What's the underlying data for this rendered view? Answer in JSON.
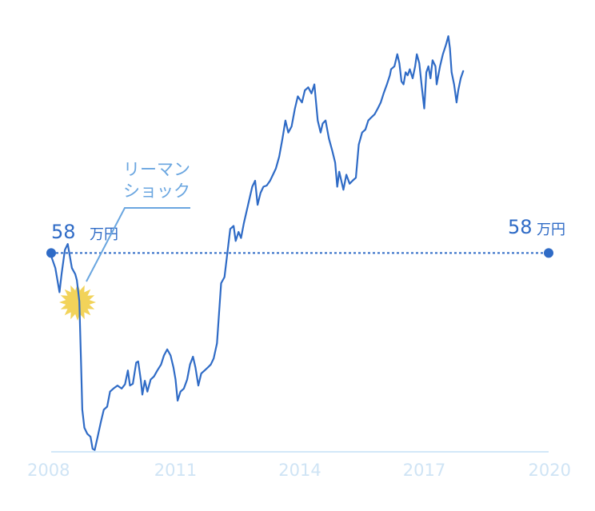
{
  "chart_data": {
    "type": "line",
    "series": [
      {
        "color": "#2f6bc6",
        "points": [
          [
            2008.0,
            57.5
          ],
          [
            2008.1,
            55.5
          ],
          [
            2008.2,
            51.5
          ],
          [
            2008.25,
            54.5
          ],
          [
            2008.33,
            58.5
          ],
          [
            2008.4,
            59.5
          ],
          [
            2008.5,
            55.5
          ],
          [
            2008.58,
            54.5
          ],
          [
            2008.62,
            53.5
          ],
          [
            2008.68,
            50
          ],
          [
            2008.72,
            40
          ],
          [
            2008.75,
            32
          ],
          [
            2008.8,
            29
          ],
          [
            2008.87,
            28
          ],
          [
            2008.95,
            27.5
          ],
          [
            2009.0,
            25.5
          ],
          [
            2009.05,
            25.3
          ],
          [
            2009.12,
            27.5
          ],
          [
            2009.2,
            30
          ],
          [
            2009.27,
            32
          ],
          [
            2009.35,
            32.5
          ],
          [
            2009.42,
            35
          ],
          [
            2009.5,
            35.5
          ],
          [
            2009.6,
            36
          ],
          [
            2009.7,
            35.5
          ],
          [
            2009.78,
            36.2
          ],
          [
            2009.85,
            38.5
          ],
          [
            2009.9,
            36
          ],
          [
            2009.97,
            36.3
          ],
          [
            2010.05,
            39.8
          ],
          [
            2010.1,
            40
          ],
          [
            2010.16,
            37
          ],
          [
            2010.2,
            34.5
          ],
          [
            2010.26,
            36.8
          ],
          [
            2010.32,
            35
          ],
          [
            2010.4,
            37
          ],
          [
            2010.48,
            37.5
          ],
          [
            2010.56,
            38.5
          ],
          [
            2010.65,
            39.5
          ],
          [
            2010.72,
            41
          ],
          [
            2010.8,
            42
          ],
          [
            2010.88,
            41
          ],
          [
            2010.95,
            39
          ],
          [
            2011.0,
            37
          ],
          [
            2011.05,
            33.5
          ],
          [
            2011.12,
            35
          ],
          [
            2011.2,
            35.5
          ],
          [
            2011.28,
            37
          ],
          [
            2011.35,
            39.5
          ],
          [
            2011.42,
            40.8
          ],
          [
            2011.48,
            39
          ],
          [
            2011.55,
            36
          ],
          [
            2011.62,
            38
          ],
          [
            2011.7,
            38.5
          ],
          [
            2011.78,
            39
          ],
          [
            2011.85,
            39.5
          ],
          [
            2011.92,
            40.5
          ],
          [
            2012.0,
            43
          ],
          [
            2012.05,
            48
          ],
          [
            2012.1,
            53
          ],
          [
            2012.18,
            54
          ],
          [
            2012.25,
            58
          ],
          [
            2012.32,
            62
          ],
          [
            2012.4,
            62.5
          ],
          [
            2012.45,
            60
          ],
          [
            2012.52,
            61.5
          ],
          [
            2012.58,
            60.5
          ],
          [
            2012.65,
            63
          ],
          [
            2012.75,
            66
          ],
          [
            2012.85,
            69
          ],
          [
            2012.92,
            70
          ],
          [
            2012.98,
            66
          ],
          [
            2013.05,
            68
          ],
          [
            2013.12,
            69
          ],
          [
            2013.2,
            69.2
          ],
          [
            2013.28,
            70
          ],
          [
            2013.35,
            71
          ],
          [
            2013.42,
            72
          ],
          [
            2013.5,
            74
          ],
          [
            2013.58,
            77
          ],
          [
            2013.65,
            80
          ],
          [
            2013.72,
            78
          ],
          [
            2013.8,
            79
          ],
          [
            2013.88,
            82
          ],
          [
            2013.95,
            84
          ],
          [
            2014.05,
            83
          ],
          [
            2014.12,
            85
          ],
          [
            2014.2,
            85.5
          ],
          [
            2014.28,
            84.5
          ],
          [
            2014.35,
            86
          ],
          [
            2014.43,
            80
          ],
          [
            2014.5,
            78
          ],
          [
            2014.55,
            79.5
          ],
          [
            2014.62,
            80
          ],
          [
            2014.7,
            77
          ],
          [
            2014.78,
            75
          ],
          [
            2014.85,
            73
          ],
          [
            2014.9,
            69
          ],
          [
            2014.95,
            71.5
          ],
          [
            2015.0,
            70
          ],
          [
            2015.05,
            68.5
          ],
          [
            2015.12,
            71
          ],
          [
            2015.2,
            69.5
          ],
          [
            2015.27,
            70
          ],
          [
            2015.35,
            70.5
          ],
          [
            2015.42,
            76
          ],
          [
            2015.5,
            78
          ],
          [
            2015.58,
            78.5
          ],
          [
            2015.65,
            80
          ],
          [
            2015.72,
            80.5
          ],
          [
            2015.8,
            81
          ],
          [
            2015.88,
            82
          ],
          [
            2015.95,
            83
          ],
          [
            2016.02,
            84.5
          ],
          [
            2016.1,
            86
          ],
          [
            2016.17,
            87.5
          ],
          [
            2016.2,
            88.5
          ],
          [
            2016.28,
            89
          ],
          [
            2016.35,
            91
          ],
          [
            2016.4,
            89.5
          ],
          [
            2016.45,
            86.5
          ],
          [
            2016.5,
            86
          ],
          [
            2016.55,
            88
          ],
          [
            2016.6,
            87.5
          ],
          [
            2016.65,
            88.5
          ],
          [
            2016.72,
            87
          ],
          [
            2016.78,
            89
          ],
          [
            2016.82,
            91
          ],
          [
            2016.88,
            89.5
          ],
          [
            2016.95,
            85
          ],
          [
            2017.0,
            82
          ],
          [
            2017.05,
            88
          ],
          [
            2017.1,
            89
          ],
          [
            2017.15,
            87
          ],
          [
            2017.2,
            90
          ],
          [
            2017.27,
            89
          ],
          [
            2017.3,
            86
          ],
          [
            2017.38,
            89
          ],
          [
            2017.45,
            91
          ],
          [
            2017.52,
            92.5
          ],
          [
            2017.58,
            94
          ],
          [
            2017.62,
            92
          ],
          [
            2017.66,
            88
          ],
          [
            2017.72,
            86
          ],
          [
            2017.78,
            83
          ],
          [
            2017.82,
            85
          ],
          [
            2017.88,
            87
          ],
          [
            2017.94,
            88.2
          ]
        ]
      }
    ],
    "xticks": [
      {
        "label": "2008",
        "x": 2008
      },
      {
        "label": "2011",
        "x": 2011
      },
      {
        "label": "2014",
        "x": 2014
      },
      {
        "label": "2017",
        "x": 2017
      },
      {
        "label": "2020",
        "x": 2020
      }
    ],
    "xlim": [
      2008,
      2020
    ],
    "ylim": [
      25,
      100
    ],
    "reference": {
      "value": 58,
      "unit": "万円",
      "left_label": "58",
      "right_label": "58",
      "style": "dotted",
      "color": "#2f6bc6"
    },
    "annotation": {
      "lines": [
        "リーマン",
        "ショック"
      ],
      "x": 2008.68,
      "y": 50,
      "color": "#6aa6e0",
      "burst_color": "#f2d35a"
    },
    "axis_color": "#d3e8f8",
    "tick_color": "#cfe4f5",
    "grid": false
  }
}
